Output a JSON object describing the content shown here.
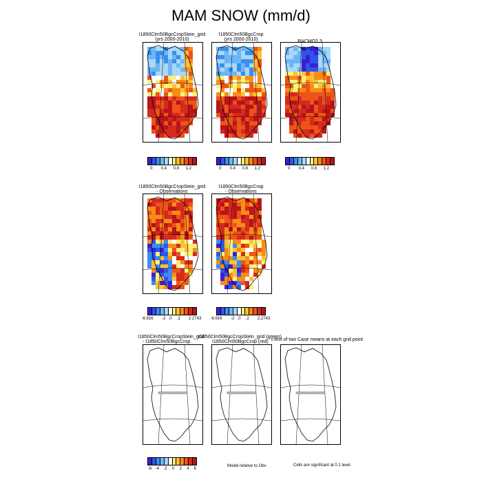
{
  "title": "MAM SNOW (mm/d)",
  "row1": {
    "panels": [
      {
        "line1": "I1850Clm50BgcCropStein_grid",
        "line2": "(yrs 2000-2010)"
      },
      {
        "line1": "I1850Clm50BgcCrop",
        "line2": "(yrs 2000-2010)"
      },
      {
        "line1": "RACMO2.3",
        "line2": ""
      }
    ],
    "colorbar_ticks": [
      "0",
      "0.4",
      "0.8",
      "1.2"
    ]
  },
  "row2": {
    "panels": [
      {
        "line1": "I1850Clm50BgcCropStein_grid",
        "line2": "- Observations"
      },
      {
        "line1": "I1850Clm50BgcCrop",
        "line2": "- Observations"
      }
    ],
    "colorbar_ticks": [
      "-6.916",
      "-2",
      ".0",
      ".2",
      "2.2743"
    ]
  },
  "row3": {
    "panel1": {
      "line1": "I1850Clm50BgcCropStein_grid",
      "line2": "- I1850Clm50BgcCrop"
    },
    "overlap_title": "I1850Clm50BgcCropStein_grid (green)",
    "overlap_title2": "I1850Clm50BgcCrop (red)",
    "ttest_title": "t-test of two Case means at each grid point",
    "colorbar_ticks": [
      "-6",
      "-4",
      "-2",
      "0",
      "2",
      "4",
      "6"
    ],
    "note_model": "Model relative to Obs",
    "note_sig": "Cells are significant at 0.1 level"
  },
  "colors": {
    "colormap": [
      "#3b1fd6",
      "#2f55e8",
      "#3c8cf0",
      "#6cb6f5",
      "#a8d8f8",
      "#ffffff",
      "#fff07a",
      "#fdc035",
      "#f88c18",
      "#ec5418",
      "#d62a1e",
      "#b8141a"
    ]
  },
  "chart_data": [
    {
      "type": "heatmap",
      "title": "I1850Clm50BgcCropStein_grid (yrs 2000-2010)",
      "colorbar": [
        0,
        0.4,
        0.8,
        1.2
      ]
    },
    {
      "type": "heatmap",
      "title": "I1850Clm50BgcCrop (yrs 2000-2010)",
      "colorbar": [
        0,
        0.4,
        0.8,
        1.2
      ]
    },
    {
      "type": "heatmap",
      "title": "RACMO2.3",
      "colorbar": [
        0,
        0.4,
        0.8,
        1.2
      ]
    },
    {
      "type": "heatmap",
      "title": "I1850Clm50BgcCropStein_grid - Observations",
      "colorbar": [
        -6.916,
        -2,
        0,
        0.2,
        2.2743
      ]
    },
    {
      "type": "heatmap",
      "title": "I1850Clm50BgcCrop - Observations",
      "colorbar": [
        -6.916,
        -2,
        0,
        0.2,
        2.2743
      ]
    },
    {
      "type": "heatmap",
      "title": "I1850Clm50BgcCropStein_grid - I1850Clm50BgcCrop",
      "colorbar": [
        -6,
        -4,
        -2,
        0,
        2,
        4,
        6
      ]
    }
  ]
}
